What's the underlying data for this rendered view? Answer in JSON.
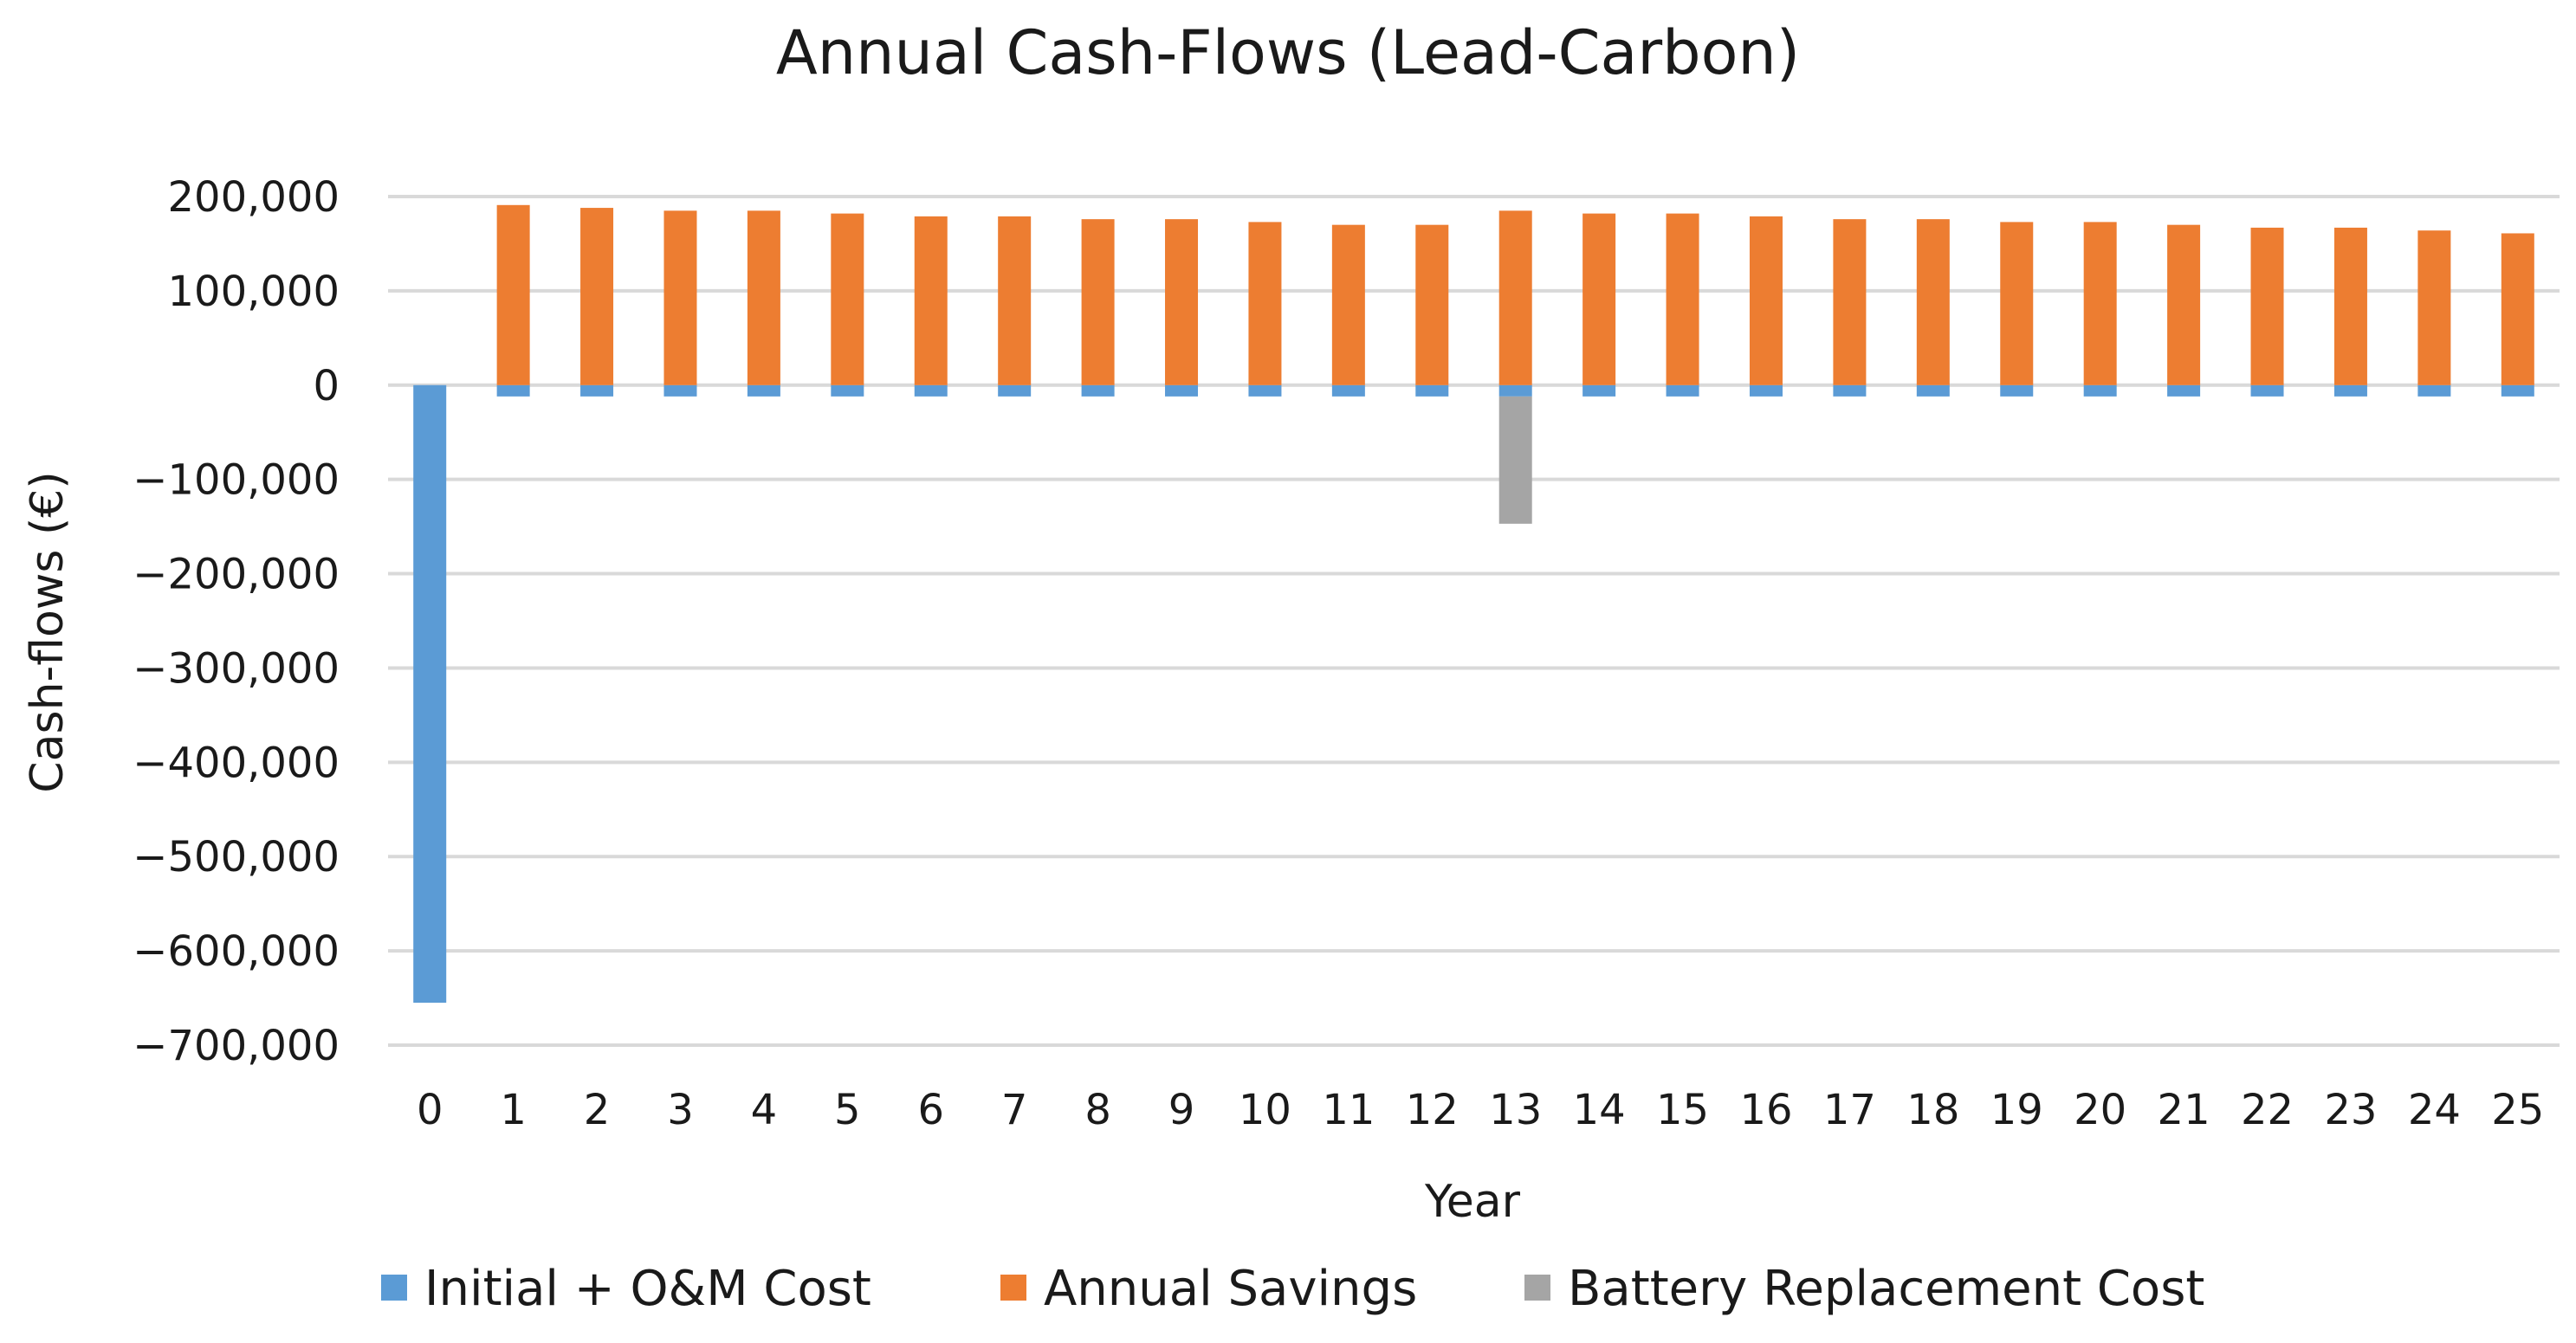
{
  "chart_data": {
    "type": "bar",
    "title": "Annual Cash-Flows (Lead-Carbon)",
    "xlabel": "Year",
    "ylabel": "Cash-flows (€)",
    "ylim": [
      -700000,
      200000
    ],
    "yticks": [
      200000,
      100000,
      0,
      -100000,
      -200000,
      -300000,
      -400000,
      -500000,
      -600000,
      -700000
    ],
    "ytick_labels": [
      "200,000",
      "100,000",
      "0",
      "−100,000",
      "−200,000",
      "−300,000",
      "−400,000",
      "−500,000",
      "−600,000",
      "−700,000"
    ],
    "categories": [
      "0",
      "1",
      "2",
      "3",
      "4",
      "5",
      "6",
      "7",
      "8",
      "9",
      "10",
      "11",
      "12",
      "13",
      "14",
      "15",
      "16",
      "17",
      "18",
      "19",
      "20",
      "21",
      "22",
      "23",
      "24",
      "25"
    ],
    "grid": true,
    "legend_position": "bottom",
    "series": [
      {
        "name": "Initial + O&M Cost",
        "color": "#5b9bd5",
        "values": [
          -655000,
          -12000,
          -12000,
          -12000,
          -12000,
          -12000,
          -12000,
          -12000,
          -12000,
          -12000,
          -12000,
          -12000,
          -12000,
          -12000,
          -12000,
          -12000,
          -12000,
          -12000,
          -12000,
          -12000,
          -12000,
          -12000,
          -12000,
          -12000,
          -12000,
          -12000
        ]
      },
      {
        "name": "Annual Savings",
        "color": "#ed7d31",
        "values": [
          0,
          191000,
          188000,
          185000,
          185000,
          182000,
          179000,
          179000,
          176000,
          176000,
          173000,
          170000,
          170000,
          185000,
          182000,
          182000,
          179000,
          176000,
          176000,
          173000,
          173000,
          170000,
          167000,
          167000,
          164000,
          161000
        ]
      },
      {
        "name": "Battery Replacement Cost",
        "color": "#a5a5a5",
        "values": [
          0,
          0,
          0,
          0,
          0,
          0,
          0,
          0,
          0,
          0,
          0,
          0,
          0,
          -135000,
          0,
          0,
          0,
          0,
          0,
          0,
          0,
          0,
          0,
          0,
          0,
          0
        ]
      }
    ]
  }
}
